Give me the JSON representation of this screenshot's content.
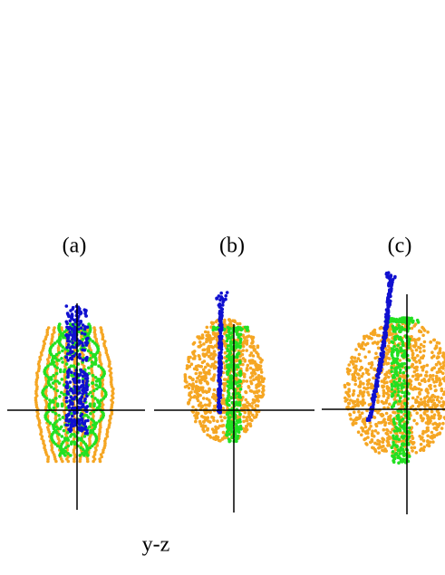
{
  "panels": [
    {
      "label": "(a)"
    },
    {
      "label": "(b)"
    },
    {
      "label": "(c)"
    }
  ],
  "caption": "y-z"
}
